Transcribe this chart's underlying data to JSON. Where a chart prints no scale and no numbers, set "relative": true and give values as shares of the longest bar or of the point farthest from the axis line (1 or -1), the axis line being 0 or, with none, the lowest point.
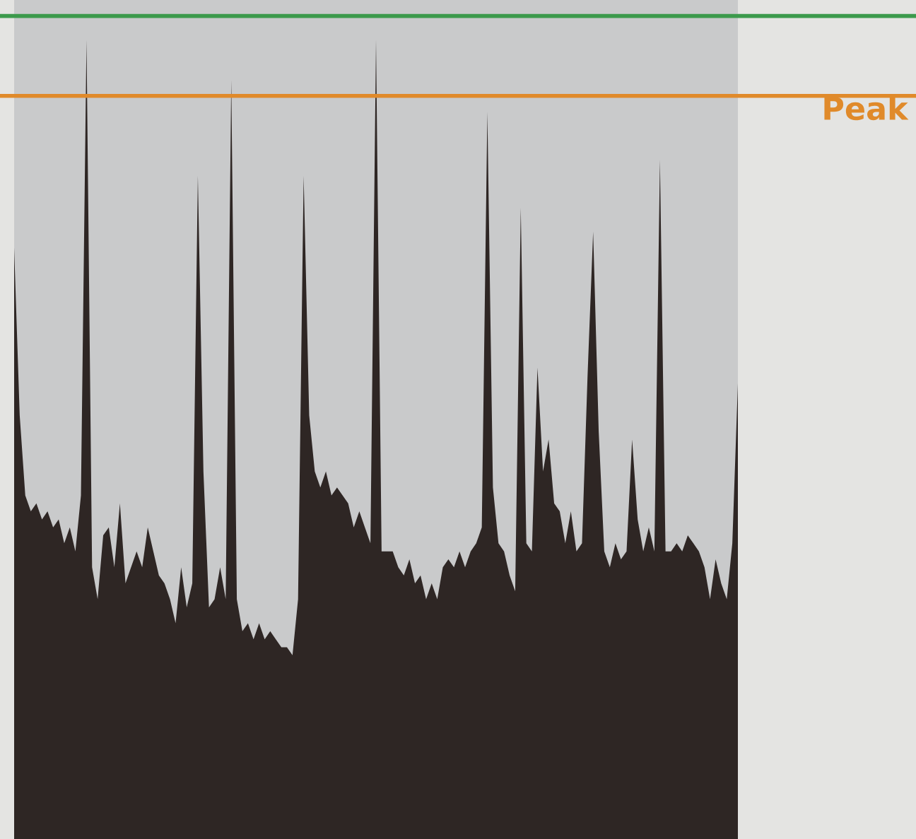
{
  "chart_data": {
    "type": "area",
    "relative": true,
    "categories": [
      null,
      null,
      null,
      null,
      null,
      null,
      null,
      null,
      null,
      null,
      null,
      null,
      null,
      null,
      null,
      null,
      null,
      null,
      null,
      null,
      null,
      null,
      null,
      null,
      null,
      null,
      null,
      null,
      null,
      null,
      null,
      null,
      null,
      null,
      null,
      null,
      null,
      null,
      null,
      null,
      null,
      null,
      null,
      null,
      null,
      null,
      null,
      null,
      null,
      null,
      null,
      null,
      null,
      null,
      null,
      null,
      null,
      null,
      null,
      null,
      null,
      null,
      null,
      null,
      null,
      null,
      null,
      null,
      null,
      null,
      null,
      null,
      null,
      null,
      null,
      null,
      null,
      null,
      null,
      null,
      null,
      null,
      null,
      null,
      null,
      null,
      null,
      null,
      null,
      null,
      null,
      null,
      null,
      null,
      null,
      null,
      null,
      null,
      null,
      null,
      null,
      null,
      null,
      null,
      null,
      null,
      null,
      null,
      null,
      null,
      null,
      null,
      null,
      null,
      null,
      null,
      null,
      null,
      null,
      null,
      null,
      null,
      null,
      null,
      null,
      null,
      null,
      null,
      null,
      null,
      null
    ],
    "series": [
      {
        "color": "#2e2624",
        "values": [
          0.74,
          0.53,
          0.43,
          0.41,
          0.42,
          0.4,
          0.41,
          0.39,
          0.4,
          0.37,
          0.39,
          0.36,
          0.43,
          1.0,
          0.34,
          0.3,
          0.38,
          0.39,
          0.34,
          0.42,
          0.32,
          0.34,
          0.36,
          0.34,
          0.39,
          0.36,
          0.33,
          0.32,
          0.3,
          0.27,
          0.34,
          0.29,
          0.32,
          0.83,
          0.46,
          0.29,
          0.3,
          0.34,
          0.3,
          0.95,
          0.3,
          0.26,
          0.27,
          0.25,
          0.27,
          0.25,
          0.26,
          0.25,
          0.24,
          0.24,
          0.23,
          0.3,
          0.83,
          0.53,
          0.46,
          0.44,
          0.46,
          0.43,
          0.44,
          0.43,
          0.42,
          0.39,
          0.41,
          0.39,
          0.37,
          1.0,
          0.36,
          0.36,
          0.36,
          0.34,
          0.33,
          0.35,
          0.32,
          0.33,
          0.3,
          0.32,
          0.3,
          0.34,
          0.35,
          0.34,
          0.36,
          0.34,
          0.36,
          0.37,
          0.39,
          0.91,
          0.44,
          0.37,
          0.36,
          0.33,
          0.31,
          0.79,
          0.37,
          0.36,
          0.59,
          0.46,
          0.5,
          0.42,
          0.41,
          0.37,
          0.41,
          0.36,
          0.37,
          0.58,
          0.76,
          0.51,
          0.36,
          0.34,
          0.37,
          0.35,
          0.36,
          0.5,
          0.4,
          0.36,
          0.39,
          0.36,
          0.85,
          0.36,
          0.36,
          0.37,
          0.36,
          0.38,
          0.37,
          0.36,
          0.34,
          0.3,
          0.35,
          0.32,
          0.3,
          0.37,
          0.57
        ]
      }
    ],
    "ref_lines": [
      {
        "axis": "y",
        "value": 1.03,
        "color": "#3c9a4c"
      },
      {
        "axis": "y",
        "value": 0.93,
        "label": "Peak",
        "color": "#e08a2a"
      }
    ]
  }
}
